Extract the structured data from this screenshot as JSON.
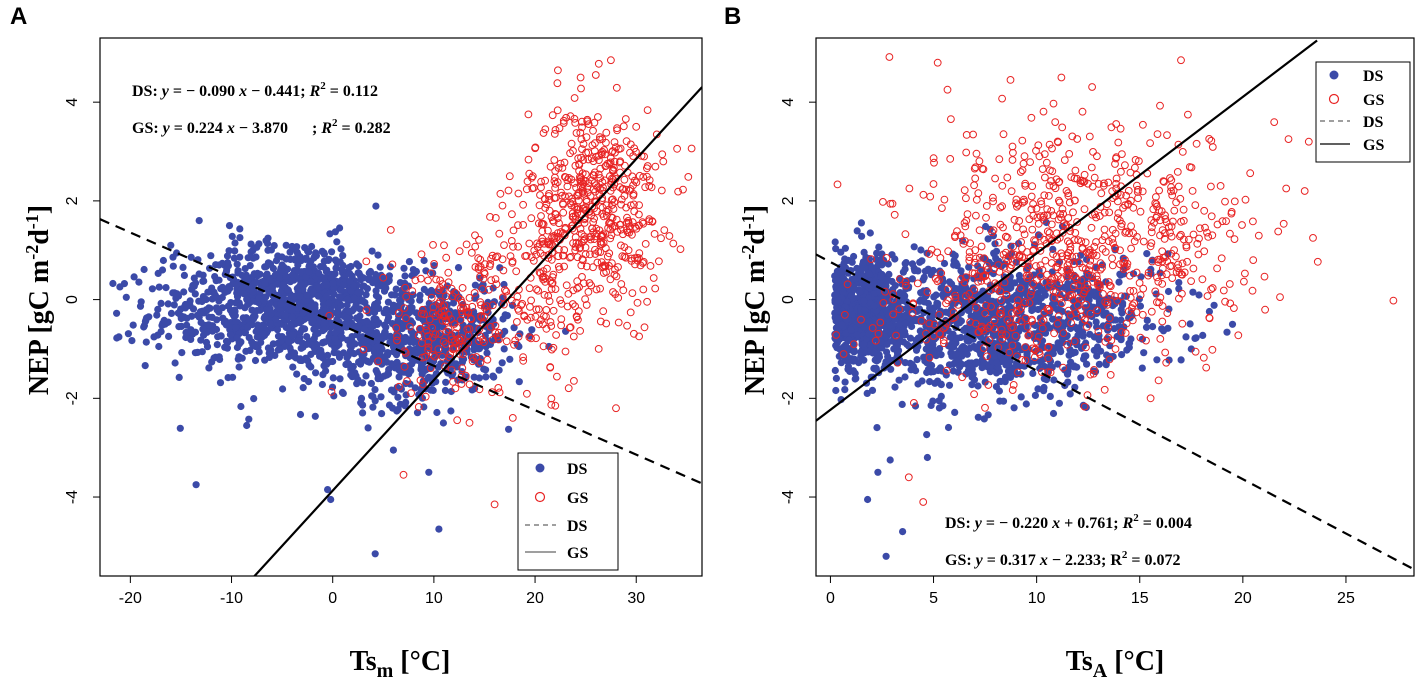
{
  "chart_data": [
    {
      "type": "scatter",
      "panel_label": "A",
      "xlabel": "Ts",
      "xlabel_sub": "m",
      "xlabel_unit": "[°C]",
      "ylabel": "NEP [gC m",
      "ylabel_sup1": "-2",
      "ylabel_mid": "d",
      "ylabel_sup2": "-1",
      "ylabel_end": "]",
      "xlim": [
        -23,
        36.5
      ],
      "ylim": [
        -5.6,
        5.3
      ],
      "xticks": [
        -20,
        -10,
        0,
        10,
        20,
        30
      ],
      "yticks": [
        -4,
        -2,
        0,
        2,
        4
      ],
      "series": [
        {
          "name": "DS",
          "marker": "filled-circle",
          "color": "#3b4aa8",
          "clusters": [
            {
              "n": 700,
              "mx": -5,
              "sx": 6.5,
              "my": -0.3,
              "sy": 0.55
            },
            {
              "n": 350,
              "mx": -4,
              "sx": 5,
              "my": 0.35,
              "sy": 0.45
            },
            {
              "n": 500,
              "mx": 7,
              "sx": 5,
              "my": -0.9,
              "sy": 0.6
            },
            {
              "n": 150,
              "mx": 12,
              "sx": 3,
              "my": -0.6,
              "sy": 0.5
            }
          ],
          "outliers": [
            [
              -13.5,
              -3.75
            ],
            [
              -8.5,
              -2.55
            ],
            [
              -0.5,
              -3.85
            ],
            [
              -0.2,
              -4.05
            ],
            [
              4.2,
              -5.15
            ],
            [
              10.5,
              -4.65
            ],
            [
              9.5,
              -3.5
            ],
            [
              6,
              -3.05
            ],
            [
              3.5,
              -2.6
            ],
            [
              -13.2,
              1.6
            ],
            [
              -10.2,
              1.5
            ],
            [
              -16,
              1.1
            ]
          ]
        },
        {
          "name": "GS",
          "marker": "open-circle",
          "color": "#e82424",
          "clusters": [
            {
              "n": 500,
              "mx": 26,
              "sx": 3.3,
              "my": 1.9,
              "sy": 1.0
            },
            {
              "n": 150,
              "mx": 20,
              "sx": 3.5,
              "my": 0.4,
              "sy": 1.1
            },
            {
              "n": 200,
              "mx": 12,
              "sx": 4,
              "my": -0.5,
              "sy": 0.8
            }
          ],
          "outliers": [
            [
              27.5,
              4.85
            ],
            [
              26,
              4.55
            ],
            [
              24.5,
              4.5
            ],
            [
              16,
              -4.15
            ],
            [
              7,
              -3.55
            ],
            [
              22,
              -2.15
            ],
            [
              28,
              -2.2
            ],
            [
              11,
              1.1
            ],
            [
              17.5,
              2.5
            ],
            [
              30,
              3.5
            ]
          ]
        }
      ],
      "fits": [
        {
          "name": "DS",
          "style": "dashed",
          "slope": -0.09,
          "intercept": -0.441,
          "x_range": [
            -23,
            36.5
          ]
        },
        {
          "name": "GS",
          "style": "solid",
          "slope": 0.224,
          "intercept": -3.87,
          "x_range": [
            -7.8,
            36.5
          ]
        }
      ],
      "annotations": [
        {
          "label": "DS:",
          "y": "y",
          "eq": "= − 0.090",
          "x": "x",
          "rest": "− 0.441;",
          "R": "R",
          "r2_sup": "2",
          "r2_val": "= 0.112"
        },
        {
          "label": "GS:",
          "y": "y",
          "eq": "= 0.224",
          "x": "x",
          "rest": "− 3.870      ;",
          "R": "R",
          "r2_sup": "2",
          "r2_val": "= 0.282"
        }
      ],
      "legend": {
        "placement": "bottom-right",
        "entries": [
          "DS",
          "GS",
          "DS",
          "GS"
        ]
      }
    },
    {
      "type": "scatter",
      "panel_label": "B",
      "xlabel": "Ts",
      "xlabel_sub": "A",
      "xlabel_unit": "[°C]",
      "ylabel": "NEP [gC m",
      "ylabel_sup1": "-2",
      "ylabel_mid": "d",
      "ylabel_sup2": "-1",
      "ylabel_end": "]",
      "xlim": [
        -0.7,
        28.3
      ],
      "ylim": [
        -5.6,
        5.3
      ],
      "xticks": [
        0,
        5,
        10,
        15,
        20,
        25
      ],
      "yticks": [
        -4,
        -2,
        0,
        2,
        4
      ],
      "series": [
        {
          "name": "DS",
          "marker": "filled-circle",
          "color": "#3b4aa8",
          "clusters": [
            {
              "n": 700,
              "mx": 1.6,
              "sx": 1.1,
              "my": -0.3,
              "sy": 0.55
            },
            {
              "n": 900,
              "mx": 7.5,
              "sx": 3.2,
              "my": -0.5,
              "sy": 0.75
            },
            {
              "n": 150,
              "mx": 13,
              "sx": 2.5,
              "my": -0.3,
              "sy": 0.6
            }
          ],
          "outliers": [
            [
              2.7,
              -5.2
            ],
            [
              3.5,
              -4.7
            ],
            [
              1.8,
              -4.05
            ],
            [
              2.3,
              -3.5
            ],
            [
              2.9,
              -3.25
            ],
            [
              4.7,
              -3.2
            ],
            [
              19.5,
              -0.5
            ],
            [
              17.5,
              -1.0
            ]
          ]
        },
        {
          "name": "GS",
          "marker": "open-circle",
          "color": "#e82424",
          "clusters": [
            {
              "n": 400,
              "mx": 11.5,
              "sx": 4,
              "my": 1.7,
              "sy": 1.0
            },
            {
              "n": 300,
              "mx": 9,
              "sx": 3.5,
              "my": 0.0,
              "sy": 0.8
            },
            {
              "n": 150,
              "mx": 16,
              "sx": 2.5,
              "my": 1.0,
              "sy": 1.0
            }
          ],
          "outliers": [
            [
              27.3,
              -0.02
            ],
            [
              21.8,
              0.05
            ],
            [
              23.4,
              1.25
            ],
            [
              23,
              2.2
            ],
            [
              23.2,
              3.2
            ],
            [
              22.1,
              2.25
            ],
            [
              20.5,
              0.8
            ],
            [
              5.2,
              4.8
            ],
            [
              11.2,
              4.5
            ],
            [
              17,
              4.85
            ],
            [
              4.5,
              -4.1
            ],
            [
              3.8,
              -3.6
            ]
          ]
        }
      ],
      "fits": [
        {
          "name": "DS",
          "style": "dashed",
          "slope": -0.22,
          "intercept": 0.761,
          "x_range": [
            -0.7,
            28.3
          ]
        },
        {
          "name": "GS",
          "style": "solid",
          "slope": 0.317,
          "intercept": -2.233,
          "x_range": [
            -0.7,
            23.6
          ]
        }
      ],
      "annotations": [
        {
          "label": "DS:",
          "y": "y",
          "eq": "= − 0.220",
          "x": "x",
          "rest": "+ 0.761;",
          "R": "R",
          "r2_sup": "2",
          "r2_val": "= 0.004"
        },
        {
          "label": "GS:",
          "y": "y",
          "eq": "= 0.317",
          "x": "x",
          "rest": "− 2.233; R",
          "R": "",
          "r2_sup": "2",
          "r2_val": "= 0.072"
        }
      ],
      "legend": {
        "placement": "top-right",
        "entries": [
          "DS",
          "GS",
          "DS",
          "GS"
        ]
      }
    }
  ]
}
